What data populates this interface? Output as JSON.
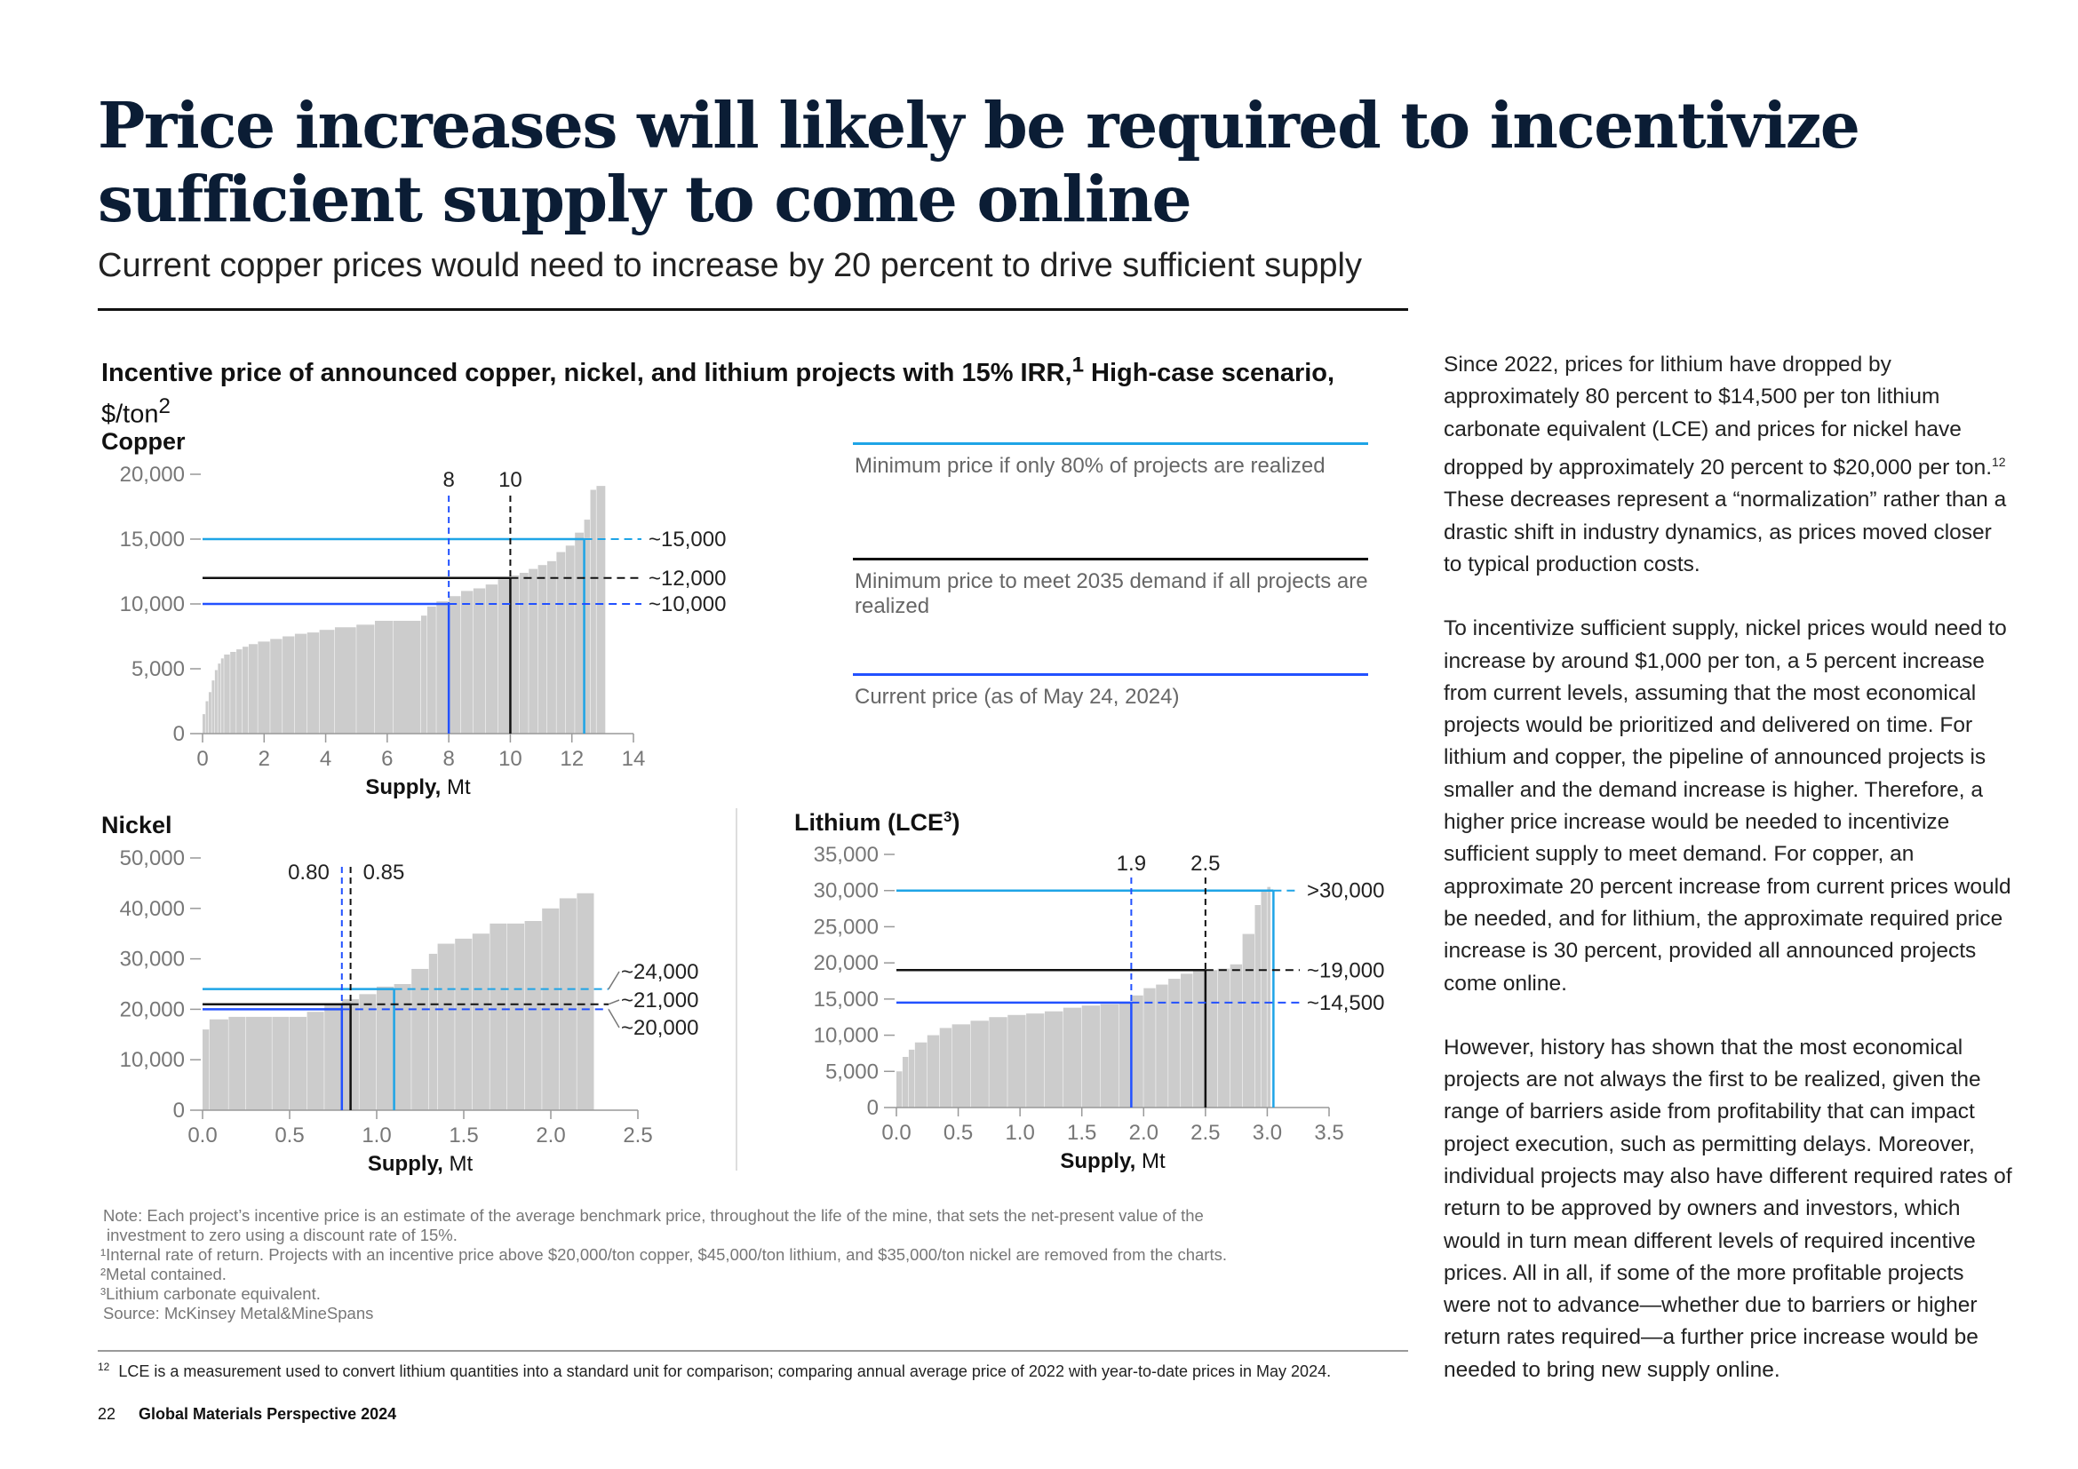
{
  "title": "Price increases will likely be required to incentivize sufficient supply to come online",
  "subtitle": "Current copper prices would need to increase by 20 percent to drive sufficient supply",
  "chart_heading": {
    "main": "Incentive price of announced copper, nickel, and lithium projects with 15% IRR,",
    "sup1": "1",
    "suffix": " High-case scenario,",
    "unit": "$/ton",
    "sup2": "2"
  },
  "legend": {
    "min80": "Minimum price if only 80% of projects are realized",
    "min2035": "Minimum price to meet 2035 demand if all projects are realized",
    "current": "Current price (as of May 24, 2024)"
  },
  "colors": {
    "min80": "#1ea4e6",
    "min2035": "#111111",
    "current": "#2251ff",
    "bars": "#cccccc",
    "axis": "#999999"
  },
  "chart_data": [
    {
      "type": "bar",
      "name": "Copper",
      "xlabel_bold": "Supply,",
      "xlabel_unit": " Mt",
      "xlim": [
        0,
        14
      ],
      "ylim": [
        0,
        20000
      ],
      "x_ticks": [
        "0",
        "2",
        "4",
        "6",
        "8",
        "10",
        "12",
        "14"
      ],
      "y_ticks": [
        "0",
        "5,000",
        "10,000",
        "15,000",
        "20,000"
      ],
      "vertical_markers": [
        {
          "x": 8,
          "label": "8",
          "color": "#2251ff"
        },
        {
          "x": 10,
          "label": "10",
          "color": "#111111"
        }
      ],
      "price_lines": [
        {
          "kind": "min80",
          "y": 15000,
          "x_end": 12.4,
          "label": "~15,000"
        },
        {
          "kind": "min2035",
          "y": 12000,
          "x_end": 10,
          "label": "~12,000"
        },
        {
          "kind": "current",
          "y": 10000,
          "x_end": 8,
          "label": "~10,000"
        }
      ],
      "supply_curve": [
        [
          0.1,
          1500
        ],
        [
          0.2,
          2500
        ],
        [
          0.3,
          3200
        ],
        [
          0.4,
          4100
        ],
        [
          0.5,
          4900
        ],
        [
          0.6,
          5400
        ],
        [
          0.7,
          5800
        ],
        [
          0.9,
          6100
        ],
        [
          1.1,
          6300
        ],
        [
          1.3,
          6500
        ],
        [
          1.5,
          6700
        ],
        [
          1.8,
          6900
        ],
        [
          2.2,
          7100
        ],
        [
          2.6,
          7300
        ],
        [
          3.0,
          7500
        ],
        [
          3.4,
          7700
        ],
        [
          3.8,
          7800
        ],
        [
          4.3,
          8000
        ],
        [
          5.0,
          8200
        ],
        [
          5.6,
          8400
        ],
        [
          6.2,
          8700
        ],
        [
          7.1,
          8700
        ],
        [
          7.3,
          9100
        ],
        [
          7.6,
          9800
        ],
        [
          8.0,
          10200
        ],
        [
          8.4,
          10600
        ],
        [
          8.8,
          11000
        ],
        [
          9.2,
          11200
        ],
        [
          9.6,
          11500
        ],
        [
          10.0,
          11900
        ],
        [
          10.3,
          12200
        ],
        [
          10.6,
          12400
        ],
        [
          10.9,
          12700
        ],
        [
          11.2,
          13000
        ],
        [
          11.5,
          13300
        ],
        [
          11.8,
          14000
        ],
        [
          12.1,
          14500
        ],
        [
          12.4,
          15500
        ],
        [
          12.6,
          16500
        ],
        [
          12.8,
          18800
        ],
        [
          13.1,
          19100
        ]
      ]
    },
    {
      "type": "bar",
      "name": "Nickel",
      "xlabel_bold": "Supply,",
      "xlabel_unit": " Mt",
      "xlim": [
        0,
        2.5
      ],
      "ylim": [
        0,
        50000
      ],
      "x_ticks": [
        "0.0",
        "0.5",
        "1.0",
        "1.5",
        "2.0",
        "2.5"
      ],
      "y_ticks": [
        "0",
        "10,000",
        "20,000",
        "30,000",
        "40,000",
        "50,000"
      ],
      "vertical_markers": [
        {
          "x": 0.8,
          "label": "0.80",
          "color": "#2251ff"
        },
        {
          "x": 0.85,
          "label": "0.85",
          "color": "#111111"
        }
      ],
      "price_lines": [
        {
          "kind": "min80",
          "y": 24000,
          "x_end": 1.1,
          "label": "~24,000"
        },
        {
          "kind": "min2035",
          "y": 21000,
          "x_end": 0.85,
          "label": "~21,000"
        },
        {
          "kind": "current",
          "y": 20000,
          "x_end": 0.8,
          "label": "~20,000"
        }
      ],
      "supply_curve": [
        [
          0.04,
          16000
        ],
        [
          0.15,
          18000
        ],
        [
          0.25,
          18500
        ],
        [
          0.4,
          18500
        ],
        [
          0.5,
          18500
        ],
        [
          0.6,
          18500
        ],
        [
          0.7,
          19500
        ],
        [
          0.8,
          21000
        ],
        [
          0.9,
          22000
        ],
        [
          1.0,
          23000
        ],
        [
          1.1,
          24500
        ],
        [
          1.2,
          25000
        ],
        [
          1.3,
          28000
        ],
        [
          1.35,
          31000
        ],
        [
          1.45,
          33000
        ],
        [
          1.55,
          34000
        ],
        [
          1.65,
          35000
        ],
        [
          1.75,
          37000
        ],
        [
          1.85,
          37000
        ],
        [
          1.95,
          37500
        ],
        [
          2.05,
          40000
        ],
        [
          2.15,
          42000
        ],
        [
          2.25,
          43000
        ]
      ]
    },
    {
      "type": "bar",
      "name": "Lithium (LCE",
      "name_sup": "3",
      "name_suffix": ")",
      "xlabel_bold": "Supply,",
      "xlabel_unit": " Mt",
      "xlim": [
        0,
        3.5
      ],
      "ylim": [
        0,
        35000
      ],
      "x_ticks": [
        "0.0",
        "0.5",
        "1.0",
        "1.5",
        "2.0",
        "2.5",
        "3.0",
        "3.5"
      ],
      "y_ticks": [
        "0",
        "5,000",
        "10,000",
        "15,000",
        "20,000",
        "25,000",
        "30,000",
        "35,000"
      ],
      "vertical_markers": [
        {
          "x": 1.9,
          "label": "1.9",
          "color": "#2251ff"
        },
        {
          "x": 2.5,
          "label": "2.5",
          "color": "#111111"
        }
      ],
      "price_lines": [
        {
          "kind": "min80",
          "y": 30000,
          "x_end": 3.05,
          "label": ">30,000"
        },
        {
          "kind": "min2035",
          "y": 19000,
          "x_end": 2.5,
          "label": "~19,000"
        },
        {
          "kind": "current",
          "y": 14500,
          "x_end": 1.9,
          "label": "~14,500"
        }
      ],
      "supply_curve": [
        [
          0.05,
          5000
        ],
        [
          0.1,
          7000
        ],
        [
          0.15,
          8000
        ],
        [
          0.25,
          9000
        ],
        [
          0.35,
          10000
        ],
        [
          0.45,
          11000
        ],
        [
          0.6,
          11500
        ],
        [
          0.75,
          12000
        ],
        [
          0.9,
          12500
        ],
        [
          1.05,
          12800
        ],
        [
          1.2,
          13000
        ],
        [
          1.35,
          13300
        ],
        [
          1.5,
          13800
        ],
        [
          1.65,
          14100
        ],
        [
          1.8,
          14300
        ],
        [
          1.9,
          14500
        ],
        [
          2.0,
          15500
        ],
        [
          2.1,
          16500
        ],
        [
          2.2,
          17000
        ],
        [
          2.3,
          17800
        ],
        [
          2.4,
          18500
        ],
        [
          2.5,
          19000
        ],
        [
          2.6,
          19000
        ],
        [
          2.7,
          19200
        ],
        [
          2.8,
          19800
        ],
        [
          2.9,
          24000
        ],
        [
          2.95,
          28000
        ],
        [
          3.0,
          30000
        ],
        [
          3.03,
          30500
        ]
      ]
    }
  ],
  "sidebar": {
    "p1": "Since 2022, prices for lithium have dropped by approximately 80 percent to $14,500 per ton lithium carbonate equivalent (LCE) and prices for nickel have dropped by approximately 20 percent to $20,000 per ton.",
    "p1_sup": "12",
    "p1_tail": " These decreases represent a “normalization” rather than a drastic shift in industry dynamics, as prices moved closer to typical production costs.",
    "p2": "To incentivize sufficient supply, nickel prices would need to increase by around $1,000 per ton, a 5 percent increase from current levels, assuming that the most economical projects would be prioritized and delivered on time. For lithium and copper, the pipeline of announced projects is smaller and the demand increase is higher. Therefore, a higher price increase would be needed to incentivize sufficient supply to meet demand. For copper, an approximate 20 percent increase from current prices would be needed, and for lithium, the approximate required price increase is 30 percent, provided all announced projects come online.",
    "p3": "However, history has shown that the most economical projects are not always the first to be realized, given the range of barriers aside from profitability that can impact project execution, such as permitting delays. Moreover, individual projects may also have different required rates of return to be approved by owners and investors, which would in turn mean different levels of required incentive prices. All in all, if some of the more profitable projects were not to advance—whether due to barriers or higher return rates required—a further price increase would be needed to bring new supply online."
  },
  "notes": {
    "note1": "Note: Each project’s incentive price is an estimate of the average benchmark price, throughout the life of the mine, that sets the net-present value of the",
    "note2": "investment to zero using a discount rate of 15%.",
    "fn1": "¹Internal rate of return. Projects with an incentive price above $20,000/ton copper, $45,000/ton lithium, and $35,000/ton nickel are removed from the charts.",
    "fn2": "²Metal contained.",
    "fn3": "³Lithium carbonate equivalent.",
    "source": "Source: McKinsey Metal&MineSpans"
  },
  "footnote12": {
    "num": "12",
    "text": "LCE is a measurement used to convert lithium quantities into a standard unit for comparison; comparing annual average price of 2022 with year-to-date prices in May 2024."
  },
  "footer": {
    "page": "22",
    "publication": "Global Materials Perspective 2024"
  }
}
